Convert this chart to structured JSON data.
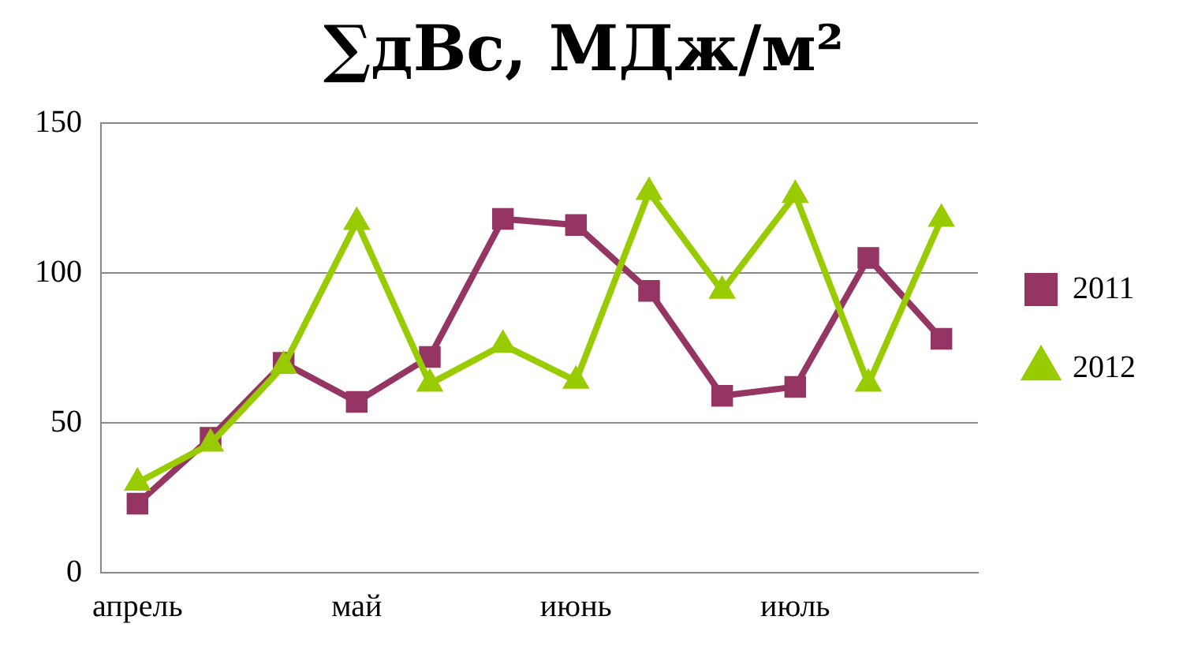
{
  "chart_data": {
    "type": "line",
    "title": "∑дВс, МДж/м²",
    "categories": [
      "апрель",
      null,
      null,
      "май",
      null,
      null,
      "июнь",
      null,
      null,
      "июль",
      null,
      null
    ],
    "series": [
      {
        "name": "2011",
        "color": "#953563",
        "marker": "square",
        "values": [
          23,
          45,
          70,
          57,
          72,
          118,
          116,
          94,
          59,
          62,
          105,
          78
        ]
      },
      {
        "name": "2012",
        "color": "#99cc00",
        "marker": "triangle",
        "values": [
          30,
          43,
          69,
          117,
          63,
          76,
          64,
          127,
          94,
          126,
          63,
          118
        ]
      }
    ],
    "ylim": [
      0,
      150
    ],
    "yticks": [
      0,
      50,
      100,
      150
    ],
    "grid": "y",
    "legend": "right",
    "line_style": "solid"
  }
}
